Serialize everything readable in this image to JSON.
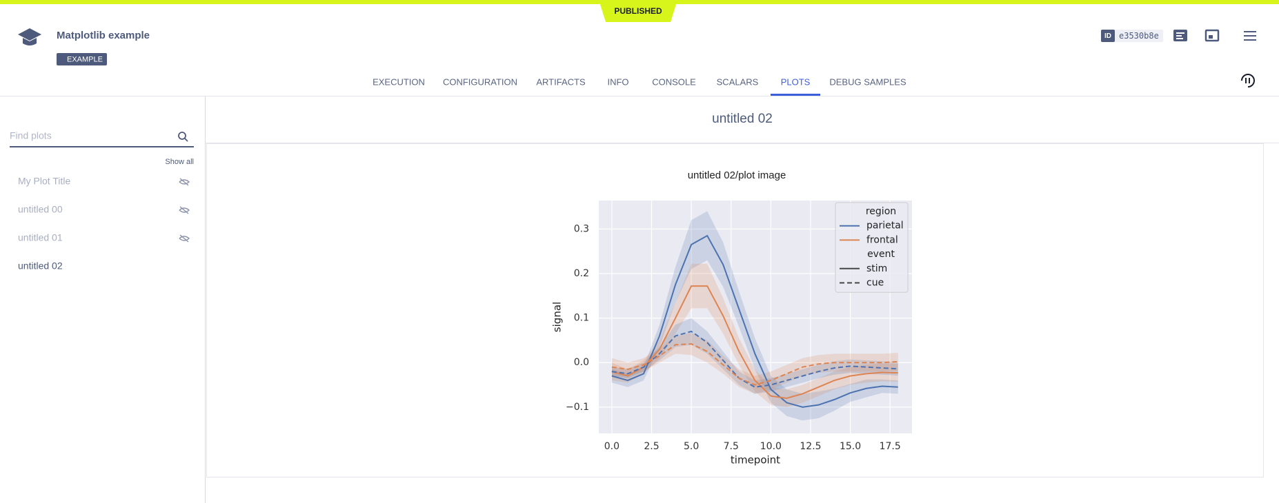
{
  "header": {
    "status": "PUBLISHED",
    "title": "Matplotlib example",
    "tag": "EXAMPLE",
    "id_label": "ID",
    "id": "e3530b8e"
  },
  "tabs": [
    "EXECUTION",
    "CONFIGURATION",
    "ARTIFACTS",
    "INFO",
    "CONSOLE",
    "SCALARS",
    "PLOTS",
    "DEBUG SAMPLES"
  ],
  "active_tab": 6,
  "sidebar": {
    "search_placeholder": "Find plots",
    "show_all": "Show all",
    "items": [
      {
        "label": "My Plot Title",
        "hidden": true
      },
      {
        "label": "untitled 00",
        "hidden": true
      },
      {
        "label": "untitled 01",
        "hidden": true
      },
      {
        "label": "untitled 02",
        "hidden": false
      }
    ]
  },
  "panel": {
    "title": "untitled 02"
  },
  "chart_data": {
    "type": "line",
    "title": "untitled 02/plot image",
    "x_label": "timepoint",
    "y_label": "signal",
    "x": [
      0,
      1,
      2,
      3,
      4,
      5,
      6,
      7,
      8,
      9,
      10,
      11,
      12,
      13,
      14,
      15,
      16,
      17,
      18
    ],
    "xlim": [
      -0.82,
      18.88
    ],
    "ylim": [
      -0.159,
      0.364
    ],
    "xticks": [
      {
        "value": 0,
        "label": "0.0"
      },
      {
        "value": 2.5,
        "label": "2.5"
      },
      {
        "value": 5,
        "label": "5.0"
      },
      {
        "value": 7.5,
        "label": "7.5"
      },
      {
        "value": 10,
        "label": "10.0"
      },
      {
        "value": 12.5,
        "label": "12.5"
      },
      {
        "value": 15,
        "label": "15.0"
      },
      {
        "value": 17.5,
        "label": "17.5"
      }
    ],
    "yticks": [
      {
        "value": -0.1,
        "label": "−0.1"
      },
      {
        "value": 0,
        "label": "0.0"
      },
      {
        "value": 0.1,
        "label": "0.1"
      },
      {
        "value": 0.2,
        "label": "0.2"
      },
      {
        "value": 0.3,
        "label": "0.3"
      }
    ],
    "grid": true,
    "legend": {
      "position": "upper right",
      "groups": [
        {
          "title": "region",
          "entries": [
            {
              "name": "parietal",
              "color": "#4c72b0",
              "dash": "solid"
            },
            {
              "name": "frontal",
              "color": "#dd8452",
              "dash": "solid"
            }
          ]
        },
        {
          "title": "event",
          "entries": [
            {
              "name": "stim",
              "color": "#444444",
              "dash": "solid"
            },
            {
              "name": "cue",
              "color": "#444444",
              "dash": "dashed"
            }
          ]
        }
      ]
    },
    "series": [
      {
        "color": "#4c72b0",
        "dash": "solid",
        "values": [
          -0.03,
          -0.04,
          -0.025,
          0.06,
          0.175,
          0.265,
          0.285,
          0.22,
          0.12,
          0.02,
          -0.06,
          -0.09,
          -0.1,
          -0.095,
          -0.083,
          -0.068,
          -0.058,
          -0.053,
          -0.055
        ],
        "ci": [
          0.015,
          0.015,
          0.015,
          0.025,
          0.04,
          0.055,
          0.055,
          0.05,
          0.04,
          0.035,
          0.03,
          0.03,
          0.03,
          0.03,
          0.025,
          0.02,
          0.02,
          0.015,
          0.015
        ]
      },
      {
        "color": "#dd8452",
        "dash": "solid",
        "values": [
          -0.02,
          -0.03,
          -0.01,
          0.03,
          0.1,
          0.172,
          0.172,
          0.105,
          0.025,
          -0.04,
          -0.075,
          -0.08,
          -0.07,
          -0.055,
          -0.04,
          -0.03,
          -0.025,
          -0.022,
          -0.023
        ],
        "ci": [
          0.02,
          0.015,
          0.015,
          0.02,
          0.035,
          0.05,
          0.05,
          0.04,
          0.03,
          0.025,
          0.02,
          0.02,
          0.02,
          0.02,
          0.02,
          0.02,
          0.02,
          0.02,
          0.02
        ]
      },
      {
        "color": "#4c72b0",
        "dash": "dashed",
        "values": [
          -0.02,
          -0.025,
          -0.01,
          0.02,
          0.06,
          0.07,
          0.045,
          0.005,
          -0.035,
          -0.055,
          -0.05,
          -0.04,
          -0.03,
          -0.02,
          -0.012,
          -0.008,
          -0.01,
          -0.012,
          -0.014
        ],
        "ci": [
          0.01,
          0.01,
          0.01,
          0.015,
          0.025,
          0.03,
          0.025,
          0.02,
          0.015,
          0.015,
          0.015,
          0.015,
          0.015,
          0.015,
          0.015,
          0.015,
          0.015,
          0.015,
          0.015
        ]
      },
      {
        "color": "#dd8452",
        "dash": "dashed",
        "values": [
          -0.01,
          -0.015,
          -0.005,
          0.015,
          0.04,
          0.042,
          0.025,
          -0.005,
          -0.035,
          -0.05,
          -0.04,
          -0.025,
          -0.01,
          -0.003,
          0,
          0,
          0,
          0,
          0.002
        ],
        "ci": [
          0.02,
          0.015,
          0.015,
          0.015,
          0.02,
          0.025,
          0.025,
          0.02,
          0.02,
          0.02,
          0.02,
          0.02,
          0.02,
          0.02,
          0.02,
          0.02,
          0.02,
          0.02,
          0.02
        ]
      }
    ]
  }
}
